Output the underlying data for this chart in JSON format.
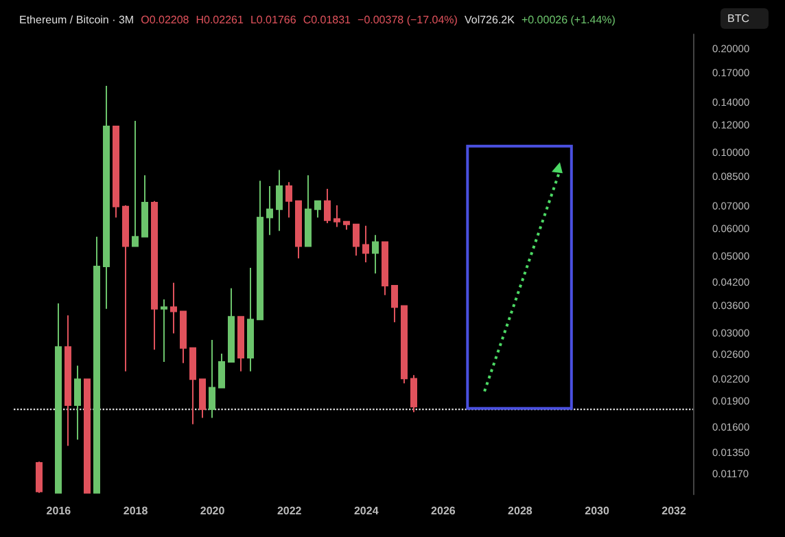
{
  "chart_data": {
    "type": "candlestick",
    "title": "Ethereum / Bitcoin · 3M",
    "annotations": [
      "O0.02208",
      "H0.02261",
      "L0.01766",
      "C0.01831",
      "−0.00378 (−17.04%)",
      "Vol726.2K",
      "+0.00026 (+1.44%)",
      "BTC"
    ],
    "x": [
      "2015-07",
      "2016-01",
      "2016-04",
      "2016-07",
      "2016-10",
      "2017-01",
      "2017-04",
      "2017-07",
      "2017-10",
      "2018-01",
      "2018-04",
      "2018-07",
      "2018-10",
      "2019-01",
      "2019-04",
      "2019-07",
      "2019-10",
      "2020-01",
      "2020-04",
      "2020-07",
      "2020-10",
      "2021-01",
      "2021-04",
      "2021-07",
      "2021-10",
      "2022-01",
      "2022-04",
      "2022-07",
      "2022-10",
      "2023-01",
      "2023-04",
      "2023-07",
      "2023-10",
      "2024-01",
      "2024-04",
      "2024-07",
      "2024-10",
      "2025-01",
      "2025-04"
    ],
    "ohlc": [
      [
        0.0126,
        0.0127,
        0.0103,
        0.0104
      ],
      [
        0.0103,
        0.0365,
        0.0103,
        0.0273
      ],
      [
        0.0273,
        0.0337,
        0.0141,
        0.0185
      ],
      [
        0.0185,
        0.0241,
        0.0147,
        0.022
      ],
      [
        0.022,
        0.022,
        0.0103,
        0.0103
      ],
      [
        0.0103,
        0.057,
        0.0103,
        0.0467
      ],
      [
        0.0467,
        0.156,
        0.0352,
        0.119
      ],
      [
        0.119,
        0.119,
        0.0648,
        0.0697
      ],
      [
        0.0697,
        0.0703,
        0.0232,
        0.0535
      ],
      [
        0.0535,
        0.1235,
        0.0535,
        0.057
      ],
      [
        0.057,
        0.0859,
        0.057,
        0.0716
      ],
      [
        0.0716,
        0.0723,
        0.0268,
        0.0352
      ],
      [
        0.0352,
        0.0375,
        0.0247,
        0.0356
      ],
      [
        0.0356,
        0.0419,
        0.0299,
        0.0346
      ],
      [
        0.0346,
        0.0346,
        0.0245,
        0.0271
      ],
      [
        0.0271,
        0.0271,
        0.0163,
        0.022
      ],
      [
        0.022,
        0.022,
        0.017,
        0.018
      ],
      [
        0.018,
        0.0286,
        0.017,
        0.0208
      ],
      [
        0.0208,
        0.0261,
        0.0208,
        0.0247
      ],
      [
        0.0247,
        0.0404,
        0.0247,
        0.0334
      ],
      [
        0.0334,
        0.0334,
        0.0232,
        0.0254
      ],
      [
        0.0254,
        0.0463,
        0.0232,
        0.0328
      ],
      [
        0.0328,
        0.0828,
        0.0328,
        0.0648
      ],
      [
        0.0648,
        0.0799,
        0.0576,
        0.0684
      ],
      [
        0.0684,
        0.089,
        0.0592,
        0.0799
      ],
      [
        0.0799,
        0.082,
        0.0648,
        0.0723
      ],
      [
        0.0723,
        0.0723,
        0.0493,
        0.0535
      ],
      [
        0.0535,
        0.0859,
        0.0535,
        0.0684
      ],
      [
        0.0684,
        0.0723,
        0.0648,
        0.0723
      ],
      [
        0.0723,
        0.0784,
        0.0624,
        0.0636
      ],
      [
        0.0642,
        0.0703,
        0.0608,
        0.063
      ],
      [
        0.063,
        0.063,
        0.0597,
        0.0619
      ],
      [
        0.0619,
        0.0619,
        0.0502,
        0.0535
      ],
      [
        0.054,
        0.0613,
        0.048,
        0.0511
      ],
      [
        0.0511,
        0.0576,
        0.0446,
        0.055
      ],
      [
        0.055,
        0.055,
        0.0386,
        0.0411
      ],
      [
        0.0411,
        0.0411,
        0.0322,
        0.0356
      ],
      [
        0.0359,
        0.0359,
        0.0214,
        0.0221
      ],
      [
        0.02208,
        0.02261,
        0.01766,
        0.01831
      ]
    ],
    "colors": [
      "#e0525c",
      "#6cc46c",
      "#e0525c",
      "#6cc46c",
      "#e0525c",
      "#6cc46c",
      "#6cc46c",
      "#e0525c",
      "#e0525c",
      "#6cc46c",
      "#6cc46c",
      "#e0525c",
      "#6cc46c",
      "#e0525c",
      "#e0525c",
      "#e0525c",
      "#e0525c",
      "#6cc46c",
      "#6cc46c",
      "#6cc46c",
      "#e0525c",
      "#6cc46c",
      "#6cc46c",
      "#6cc46c",
      "#6cc46c",
      "#e0525c",
      "#e0525c",
      "#6cc46c",
      "#6cc46c",
      "#e0525c",
      "#e0525c",
      "#e0525c",
      "#e0525c",
      "#e0525c",
      "#6cc46c",
      "#e0525c",
      "#e0525c",
      "#e0525c",
      "#e0525c"
    ],
    "log": "y",
    "xlim": [
      "2014-11",
      "2032-07"
    ],
    "xticks": [
      "2016",
      "2018",
      "2020",
      "2022",
      "2024",
      "2026",
      "2028",
      "2030",
      "2032"
    ],
    "ylim": [
      0.0102,
      0.22
    ],
    "yticks": [
      {
        "value": 0.2,
        "label": "0.20000"
      },
      {
        "value": 0.17,
        "label": "0.17000"
      },
      {
        "value": 0.14,
        "label": "0.14000"
      },
      {
        "value": 0.12,
        "label": "0.12000"
      },
      {
        "value": 0.1,
        "label": "0.10000"
      },
      {
        "value": 0.085,
        "label": "0.08500"
      },
      {
        "value": 0.07,
        "label": "0.07000"
      },
      {
        "value": 0.06,
        "label": "0.06000"
      },
      {
        "value": 0.05,
        "label": "0.05000"
      },
      {
        "value": 0.042,
        "label": "0.04200"
      },
      {
        "value": 0.036,
        "label": "0.03600"
      },
      {
        "value": 0.03,
        "label": "0.03000"
      },
      {
        "value": 0.026,
        "label": "0.02600"
      },
      {
        "value": 0.022,
        "label": "0.02200"
      },
      {
        "value": 0.019,
        "label": "0.01900"
      },
      {
        "value": 0.016,
        "label": "0.01600"
      },
      {
        "value": 0.0135,
        "label": "0.01350"
      },
      {
        "value": 0.0117,
        "label": "0.01170"
      }
    ],
    "ref_lines": [
      {
        "axis": "y",
        "value": 0.018,
        "color": "#dddddd",
        "line_style": "dotted"
      }
    ],
    "grid": false
  }
}
